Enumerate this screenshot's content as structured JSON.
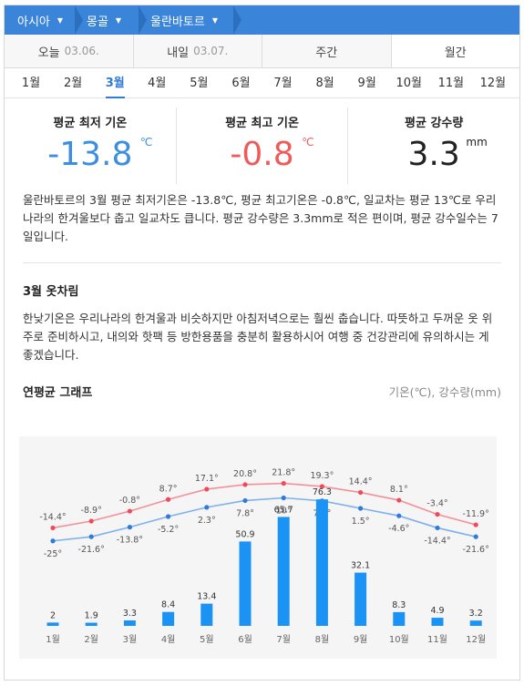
{
  "breadcrumb": [
    {
      "label": "아시아"
    },
    {
      "label": "몽골"
    },
    {
      "label": "울란바토르"
    }
  ],
  "period_tabs": [
    {
      "label": "오늘",
      "date": "03.06."
    },
    {
      "label": "내일",
      "date": "03.07."
    },
    {
      "label": "주간",
      "date": ""
    },
    {
      "label": "월간",
      "date": ""
    }
  ],
  "month_tabs": [
    "1월",
    "2월",
    "3월",
    "4월",
    "5월",
    "6월",
    "7월",
    "8월",
    "9월",
    "10월",
    "11월",
    "12월"
  ],
  "active_month": "3월",
  "stats": {
    "min": {
      "label": "평균 최저 기온",
      "value": "-13.8",
      "unit": "℃"
    },
    "max": {
      "label": "평균 최고 기온",
      "value": "-0.8",
      "unit": "℃"
    },
    "precip": {
      "label": "평균 강수량",
      "value": "3.3",
      "unit": "mm"
    }
  },
  "summary": "울란바토르의 3월 평균 최저기온은 -13.8℃, 평균 최고기온은 -0.8℃, 일교차는 평균 13℃로 우리나라의 한겨울보다 춥고 일교차도 큽니다. 평균 강수량은 3.3mm로 적은 편이며, 평균 강수일수는 7일입니다.",
  "clothing": {
    "title": "3월 옷차림",
    "text": "한낮기온은 우리나라의 한겨울과 비슷하지만 아침저녁으로는 훨씬 춥습니다. 따뜻하고 두꺼운 옷 위주로 준비하시고, 내의와 핫팩 등 방한용품을 충분히 활용하시어 여행 중 건강관리에 유의하시는 게 좋겠습니다."
  },
  "graph": {
    "title": "연평균 그래프",
    "subtitle": "기온(℃), 강수량(mm)"
  },
  "colors": {
    "accent": "#3a84d9",
    "max_line": "#f2919b",
    "min_line": "#7db1ec",
    "bar": "#1a93f5"
  },
  "chart_data": {
    "type": "bar",
    "categories": [
      "1월",
      "2월",
      "3월",
      "4월",
      "5월",
      "6월",
      "7월",
      "8월",
      "9월",
      "10월",
      "11월",
      "12월"
    ],
    "series": [
      {
        "name": "max",
        "kind": "line",
        "values": [
          -14.4,
          -8.9,
          -0.8,
          8.7,
          17.1,
          20.8,
          21.8,
          19.3,
          14.4,
          8.1,
          -3.4,
          -11.9
        ],
        "labels": [
          "-14.4°",
          "-8.9°",
          "-0.8°",
          "8.7°",
          "17.1°",
          "20.8°",
          "21.8°",
          "19.3°",
          "14.4°",
          "8.1°",
          "-3.4°",
          "-11.9°"
        ]
      },
      {
        "name": "min",
        "kind": "line",
        "values": [
          -25,
          -21.6,
          -13.8,
          -5.2,
          2.3,
          7.8,
          10,
          7.6,
          1.5,
          -4.6,
          -14.4,
          -21.6
        ],
        "labels": [
          "-25°",
          "-21.6°",
          "-13.8°",
          "-5.2°",
          "2.3°",
          "7.8°",
          "10°",
          "7.6°",
          "1.5°",
          "-4.6°",
          "-14.4°",
          "-21.6°"
        ]
      },
      {
        "name": "precip",
        "kind": "bar",
        "values": [
          2,
          1.9,
          3.3,
          8.4,
          13.4,
          50.9,
          65.7,
          76.3,
          32.1,
          8.3,
          4.9,
          3.2
        ],
        "labels": [
          "2",
          "1.9",
          "3.3",
          "8.4",
          "13.4",
          "50.9",
          "65.7",
          "76.3",
          "32.1",
          "8.3",
          "4.9",
          "3.2"
        ]
      }
    ],
    "grid": false
  }
}
